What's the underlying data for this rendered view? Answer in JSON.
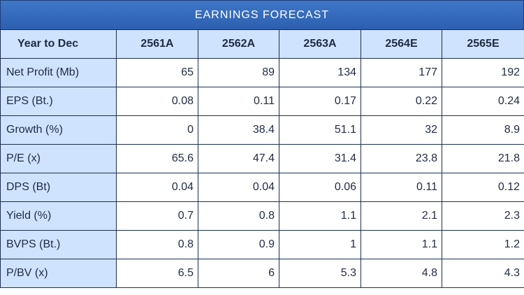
{
  "title": "EARNINGS FORECAST",
  "colors": {
    "title_bg": "#2d5fb0",
    "header_bg": "#cfe3ff",
    "border": "#1d2f52"
  },
  "headers": [
    "Year to Dec",
    "2561A",
    "2562A",
    "2563A",
    "2564E",
    "2565E"
  ],
  "rows": [
    {
      "label": "Net Profit (Mb)",
      "values": [
        "65",
        "89",
        "134",
        "177",
        "192"
      ]
    },
    {
      "label": "EPS (Bt.)",
      "values": [
        "0.08",
        "0.11",
        "0.17",
        "0.22",
        "0.24"
      ]
    },
    {
      "label": "Growth (%)",
      "values": [
        "0",
        "38.4",
        "51.1",
        "32",
        "8.9"
      ]
    },
    {
      "label": "P/E (x)",
      "values": [
        "65.6",
        "47.4",
        "31.4",
        "23.8",
        "21.8"
      ]
    },
    {
      "label": "DPS (Bt)",
      "values": [
        "0.04",
        "0.04",
        "0.06",
        "0.11",
        "0.12"
      ]
    },
    {
      "label": "Yield (%)",
      "values": [
        "0.7",
        "0.8",
        "1.1",
        "2.1",
        "2.3"
      ]
    },
    {
      "label": "BVPS (Bt.)",
      "values": [
        "0.8",
        "0.9",
        "1",
        "1.1",
        "1.2"
      ]
    },
    {
      "label": "P/BV (x)",
      "values": [
        "6.5",
        "6",
        "5.3",
        "4.8",
        "4.3"
      ]
    }
  ]
}
